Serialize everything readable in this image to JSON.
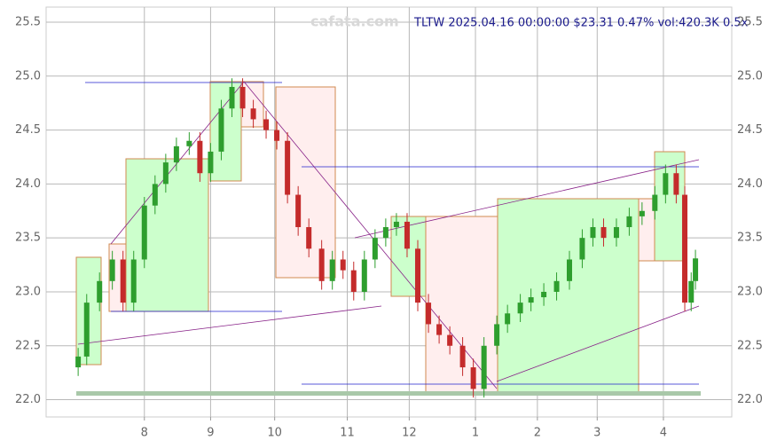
{
  "chart_data": {
    "type": "candlestick",
    "title": "TLTW 2025.04.16 00:00:00 $23.31 0.47% vol:420.3K 0.5x",
    "watermark": "cafata.com",
    "x": [
      0,
      4,
      10,
      16,
      21,
      26,
      31,
      36,
      41,
      46,
      52,
      57,
      62,
      67,
      72,
      77,
      82,
      88,
      93,
      98,
      103,
      108,
      114,
      119,
      124,
      129,
      134,
      139,
      144,
      149,
      154,
      159,
      164,
      169,
      174,
      180,
      185,
      190,
      196,
      201,
      207,
      212,
      218,
      224,
      230,
      236,
      241,
      246,
      252,
      258,
      264,
      270,
      275,
      280,
      284,
      287,
      289
    ],
    "open": [
      22.3,
      22.4,
      22.9,
      23.1,
      23.3,
      22.9,
      23.3,
      23.8,
      24.0,
      24.2,
      24.35,
      24.4,
      24.1,
      24.3,
      24.7,
      24.9,
      24.7,
      24.6,
      24.5,
      24.4,
      23.9,
      23.6,
      23.4,
      23.1,
      23.3,
      23.2,
      23.0,
      23.3,
      23.5,
      23.6,
      23.65,
      23.4,
      22.9,
      22.7,
      22.6,
      22.5,
      22.3,
      22.1,
      22.5,
      22.7,
      22.8,
      22.9,
      22.95,
      23.0,
      23.1,
      23.3,
      23.5,
      23.6,
      23.5,
      23.6,
      23.7,
      23.75,
      23.9,
      24.1,
      23.9,
      22.9,
      23.1
    ],
    "high": [
      22.48,
      22.98,
      23.18,
      23.38,
      23.38,
      23.38,
      23.88,
      24.08,
      24.28,
      24.43,
      24.48,
      24.48,
      24.38,
      24.78,
      24.98,
      24.98,
      24.78,
      24.68,
      24.58,
      24.48,
      23.98,
      23.68,
      23.48,
      23.38,
      23.38,
      23.28,
      23.38,
      23.58,
      23.68,
      23.73,
      23.73,
      23.48,
      22.98,
      22.78,
      22.68,
      22.58,
      22.38,
      22.58,
      22.78,
      22.88,
      22.98,
      23.03,
      23.08,
      23.18,
      23.38,
      23.58,
      23.68,
      23.68,
      23.68,
      23.78,
      23.83,
      23.98,
      24.18,
      24.18,
      23.98,
      23.18,
      23.39
    ],
    "low": [
      22.22,
      22.32,
      22.82,
      23.02,
      22.82,
      22.82,
      23.22,
      23.72,
      23.92,
      24.12,
      24.27,
      24.02,
      24.02,
      24.22,
      24.62,
      24.62,
      24.52,
      24.42,
      24.32,
      23.82,
      23.52,
      23.32,
      23.02,
      23.02,
      23.12,
      22.92,
      22.92,
      23.22,
      23.42,
      23.52,
      23.32,
      22.82,
      22.62,
      22.52,
      22.42,
      22.22,
      22.02,
      22.02,
      22.42,
      22.62,
      22.72,
      22.82,
      22.87,
      22.92,
      23.02,
      23.22,
      23.42,
      23.42,
      23.42,
      23.52,
      23.62,
      23.67,
      23.82,
      23.82,
      22.82,
      22.82,
      23.02
    ],
    "close": [
      22.4,
      22.9,
      23.1,
      23.3,
      22.9,
      23.3,
      23.8,
      24.0,
      24.2,
      24.35,
      24.4,
      24.1,
      24.3,
      24.7,
      24.9,
      24.7,
      24.6,
      24.5,
      24.4,
      23.9,
      23.6,
      23.4,
      23.1,
      23.3,
      23.2,
      23.0,
      23.3,
      23.5,
      23.6,
      23.65,
      23.4,
      22.9,
      22.7,
      22.6,
      22.5,
      22.3,
      22.1,
      22.5,
      22.7,
      22.8,
      22.9,
      22.95,
      23.0,
      23.1,
      23.3,
      23.5,
      23.6,
      23.5,
      23.6,
      23.7,
      23.75,
      23.9,
      24.1,
      23.9,
      22.9,
      23.1,
      23.31
    ],
    "up_color": "#2e9e2e",
    "down_color": "#c42b2b",
    "xlim": [
      -15,
      306
    ],
    "xticks": [
      {
        "value": 31,
        "label": "8"
      },
      {
        "value": 62,
        "label": "9"
      },
      {
        "value": 92,
        "label": "10"
      },
      {
        "value": 126,
        "label": "11"
      },
      {
        "value": 155,
        "label": "12"
      },
      {
        "value": 186,
        "label": "1"
      },
      {
        "value": 215,
        "label": "2"
      },
      {
        "value": 243,
        "label": "3"
      },
      {
        "value": 274,
        "label": "4"
      }
    ],
    "ylim": [
      21.84,
      25.64
    ],
    "yticks": [
      {
        "value": 22,
        "label": "22.0"
      },
      22.5,
      {
        "value": 23,
        "label": "23.0"
      },
      23.5,
      {
        "value": 24,
        "label": "24.0"
      },
      24.5,
      {
        "value": 25,
        "label": "25.0"
      },
      25.5
    ],
    "grid": true
  }
}
